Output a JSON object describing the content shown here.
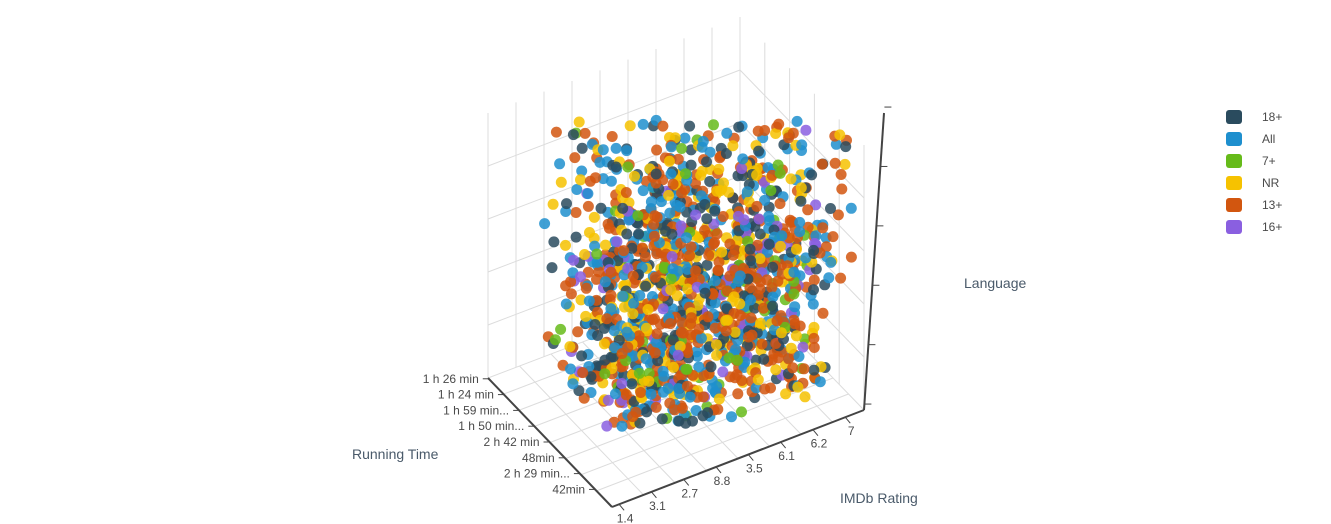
{
  "chart_data": {
    "type": "scatter",
    "title": "",
    "xlabel": "Running Time",
    "ylabel": "IMDb Rating",
    "zlabel": "Language",
    "running_time_ticks": [
      "1 h 26 min",
      "1 h 24 min",
      "1 h 59 min...",
      "1 h 50 min...",
      "2 h 42 min",
      "48min",
      "2 h 29 min...",
      "42min"
    ],
    "imdb_ticks": [
      "1.4",
      "3.1",
      "2.7",
      "8.8",
      "3.5",
      "6.1",
      "6.2",
      "7"
    ],
    "legend_position": "top-right",
    "series": [
      {
        "name": "18+",
        "color": "#2a4b5e"
      },
      {
        "name": "All",
        "color": "#1e8fce"
      },
      {
        "name": "7+",
        "color": "#66bb1a"
      },
      {
        "name": "NR",
        "color": "#f6c200"
      },
      {
        "name": "13+",
        "color": "#d2560f"
      },
      {
        "name": "16+",
        "color": "#8a5fe0"
      }
    ]
  }
}
